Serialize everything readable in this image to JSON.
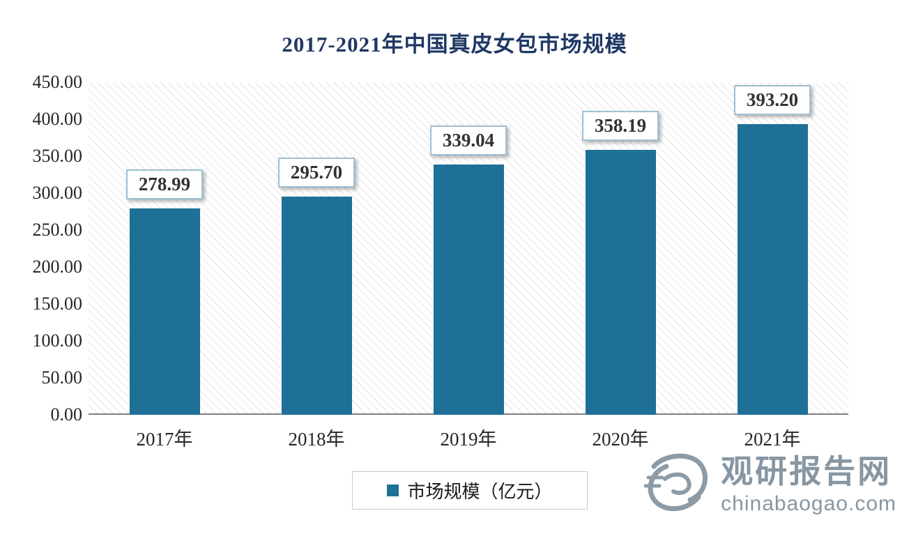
{
  "title": "2017-2021年中国真皮女包市场规模",
  "legend": {
    "label": "市场规模（亿元）"
  },
  "watermark": {
    "name": "观研报告网",
    "domain": "chinabaogao.com"
  },
  "colors": {
    "bar_color": "#1f7096",
    "title_color": "#1f3864",
    "label_border_color": "#9cc0d6",
    "watermark_color": "#8796a2"
  },
  "chart_data": {
    "type": "bar",
    "title": "2017-2021年中国真皮女包市场规模",
    "categories": [
      "2017年",
      "2018年",
      "2019年",
      "2020年",
      "2021年"
    ],
    "values": [
      278.99,
      295.7,
      339.04,
      358.19,
      393.2
    ],
    "value_labels": [
      "278.99",
      "295.70",
      "339.04",
      "358.19",
      "393.20"
    ],
    "series_name": "市场规模（亿元）",
    "xlabel": "",
    "ylabel": "",
    "ylim": [
      0,
      450
    ],
    "y_tick_step": 50,
    "y_ticks": [
      "0.00",
      "50.00",
      "100.00",
      "150.00",
      "200.00",
      "250.00",
      "300.00",
      "350.00",
      "400.00",
      "450.00"
    ],
    "grid": false,
    "legend_position": "bottom",
    "background_pattern": "diagonal-hatch"
  }
}
